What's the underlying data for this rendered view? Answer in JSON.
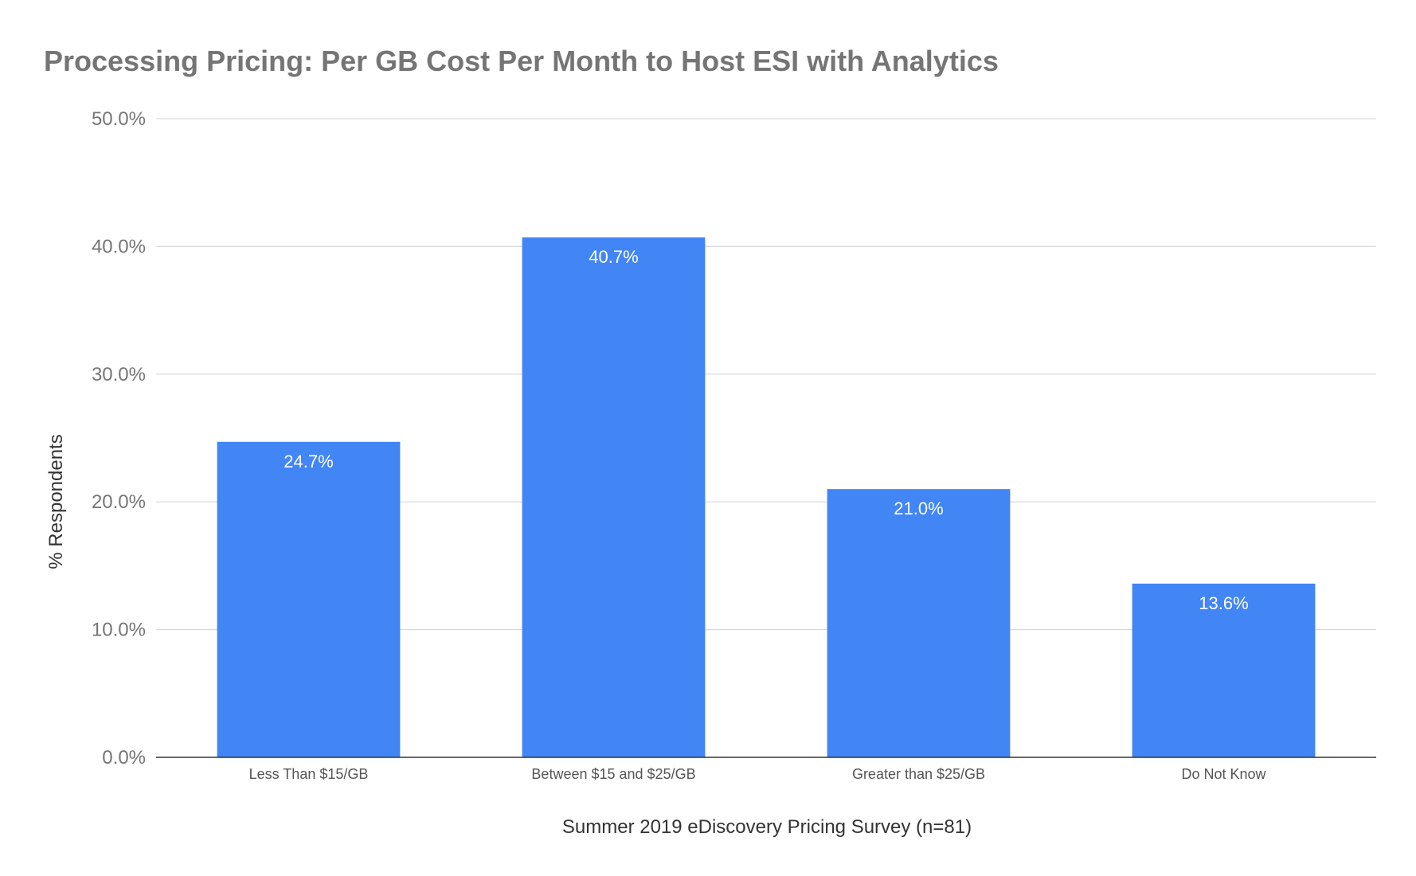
{
  "chart_data": {
    "type": "bar",
    "title": "Processing Pricing: Per GB Cost Per Month to Host ESI with Analytics",
    "xlabel": "Summer 2019 eDiscovery Pricing Survey (n=81)",
    "ylabel": "% Respondents",
    "categories": [
      "Less Than $15/GB",
      "Between $15 and $25/GB",
      "Greater than $25/GB",
      "Do Not Know"
    ],
    "values": [
      24.7,
      40.7,
      21.0,
      13.6
    ],
    "data_labels": [
      "24.7%",
      "40.7%",
      "21.0%",
      "13.6%"
    ],
    "ylim": [
      0,
      50
    ],
    "yticks": [
      0,
      10,
      20,
      30,
      40,
      50
    ],
    "ytick_labels": [
      "0.0%",
      "10.0%",
      "20.0%",
      "30.0%",
      "40.0%",
      "50.0%"
    ],
    "grid": true,
    "legend": "none",
    "colors": {
      "bar": "#4285f4",
      "title": "#757575",
      "grid": "#d9d9d9",
      "baseline": "#333333"
    }
  }
}
